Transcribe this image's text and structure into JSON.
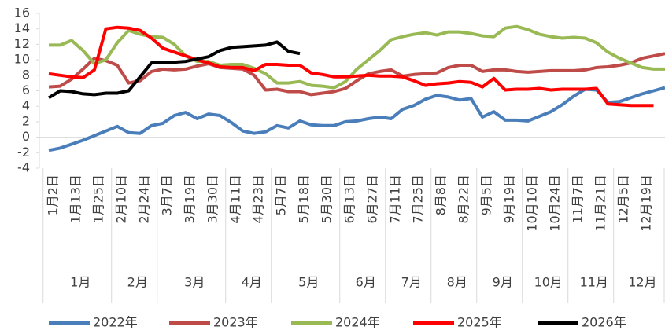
{
  "chart_data": {
    "type": "line",
    "categories": [
      "1月2日",
      null,
      "1月13日",
      null,
      "1月25日",
      null,
      "2月10日",
      null,
      "2月24日",
      null,
      "3月7日",
      null,
      "3月19日",
      null,
      "3月30日",
      null,
      "4月11日",
      null,
      "4月23日",
      null,
      "5月7日",
      null,
      "5月18日",
      null,
      "5月30日",
      null,
      "6月13日",
      null,
      "6月27日",
      null,
      "7月11日",
      null,
      "7月25日",
      null,
      "8月8日",
      null,
      "8月22日",
      null,
      "9月5日",
      null,
      "9月19日",
      null,
      "10月10日",
      null,
      "10月24日",
      null,
      "11月7日",
      null,
      "11月21日",
      null,
      "12月5日",
      null,
      "12月19日",
      null,
      null
    ],
    "groups": [
      "1月",
      "2月",
      "3月",
      "4月",
      "5月",
      "6月",
      "7月",
      "8月",
      "9月",
      "10月",
      "11月",
      "12月"
    ],
    "series": [
      {
        "name": "2022年",
        "color": "#4a7ebb",
        "values": [
          -1.7,
          -1.4,
          -0.9,
          -0.4,
          0.2,
          0.8,
          1.4,
          0.6,
          0.5,
          1.5,
          1.8,
          2.8,
          3.2,
          2.4,
          3.0,
          2.8,
          1.9,
          0.8,
          0.5,
          0.7,
          1.5,
          1.2,
          2.1,
          1.6,
          1.5,
          1.5,
          2.0,
          2.1,
          2.4,
          2.6,
          2.4,
          3.6,
          4.1,
          4.9,
          5.4,
          5.2,
          4.8,
          5.0,
          2.6,
          3.3,
          2.2,
          2.2,
          2.1,
          2.7,
          3.3,
          4.2,
          5.3,
          6.2,
          6.1,
          4.5,
          4.6,
          5.1,
          5.6,
          6.0,
          6.4
        ]
      },
      {
        "name": "2023年",
        "color": "#be4b48",
        "values": [
          6.5,
          6.6,
          7.5,
          8.8,
          10.2,
          9.9,
          9.3,
          7.0,
          7.3,
          8.5,
          8.8,
          8.7,
          8.8,
          9.2,
          9.5,
          9.0,
          8.9,
          8.8,
          8.0,
          6.1,
          6.2,
          5.9,
          5.9,
          5.5,
          5.7,
          5.9,
          6.3,
          7.3,
          8.2,
          8.5,
          8.7,
          7.9,
          8.1,
          8.2,
          8.3,
          9.0,
          9.3,
          9.3,
          8.5,
          8.7,
          8.7,
          8.5,
          8.4,
          8.5,
          8.6,
          8.6,
          8.6,
          8.7,
          9.0,
          9.1,
          9.3,
          9.6,
          10.2,
          10.5,
          10.8
        ]
      },
      {
        "name": "2024年",
        "color": "#98b954",
        "values": [
          11.9,
          11.9,
          12.5,
          11.2,
          9.5,
          10.0,
          12.2,
          13.8,
          13.3,
          13.0,
          12.9,
          12.0,
          10.5,
          9.8,
          9.8,
          9.3,
          9.4,
          9.4,
          8.9,
          8.2,
          7.0,
          7.0,
          7.2,
          6.7,
          6.6,
          6.4,
          7.2,
          8.8,
          10.0,
          11.2,
          12.6,
          13.0,
          13.3,
          13.5,
          13.2,
          13.6,
          13.6,
          13.4,
          13.1,
          13.0,
          14.1,
          14.3,
          13.9,
          13.3,
          13.0,
          12.8,
          12.9,
          12.8,
          12.2,
          11.0,
          10.2,
          9.6,
          9.0,
          8.8,
          8.8
        ]
      },
      {
        "name": "2025年",
        "color": "#ff0000",
        "values": [
          8.2,
          8.0,
          7.8,
          7.7,
          8.7,
          14.0,
          14.2,
          14.1,
          13.8,
          12.8,
          11.5,
          11.0,
          10.5,
          10.0,
          9.6,
          9.1,
          9.0,
          9.0,
          8.6,
          9.4,
          9.4,
          9.3,
          9.3,
          8.3,
          8.1,
          7.8,
          7.8,
          7.9,
          8.0,
          7.9,
          7.9,
          7.8,
          7.3,
          6.7,
          6.9,
          7.0,
          7.2,
          7.1,
          6.5,
          7.6,
          6.1,
          6.2,
          6.2,
          6.3,
          6.1,
          6.2,
          6.2,
          6.2,
          6.3,
          4.3,
          4.2,
          4.1,
          4.1,
          4.1,
          null
        ]
      },
      {
        "name": "2026年",
        "color": "#000000",
        "values": [
          5.1,
          6.0,
          5.9,
          5.6,
          5.5,
          5.7,
          5.7,
          6.0,
          7.8,
          9.6,
          9.7,
          9.7,
          9.8,
          10.1,
          10.4,
          11.2,
          11.6,
          11.7,
          11.8,
          11.9,
          12.3,
          11.1,
          10.8,
          null,
          null,
          null,
          null,
          null,
          null,
          null,
          null,
          null,
          null,
          null,
          null,
          null,
          null,
          null,
          null,
          null,
          null,
          null,
          null,
          null,
          null,
          null,
          null,
          null,
          null,
          null,
          null,
          null,
          null,
          null,
          null
        ]
      }
    ],
    "ylim": [
      -4,
      16
    ],
    "yticks": [
      -4,
      -2,
      0,
      2,
      4,
      6,
      8,
      10,
      12,
      14,
      16
    ],
    "legend": "bottom"
  }
}
